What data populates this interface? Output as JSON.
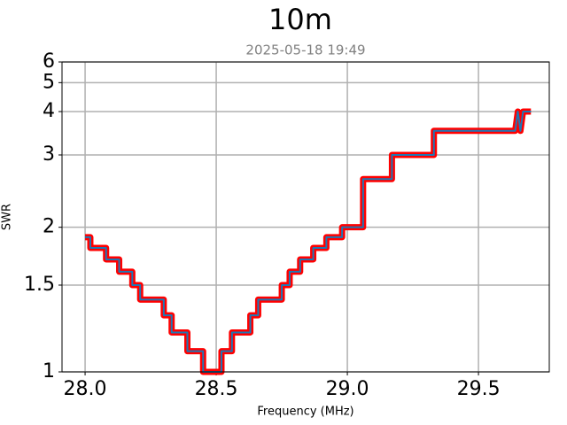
{
  "chart_data": {
    "type": "line",
    "title": "10m",
    "subtitle": "2025-05-18 19:49",
    "x_label": "Frequency (MHz)",
    "y_label": "SWR",
    "yscale": "reflection",
    "color": "#1f77b4",
    "edge_color": "#ff0000",
    "grid": true,
    "xlim": [
      27.912,
      29.77
    ],
    "ylim": [
      1,
      6
    ],
    "xticks": [
      {
        "value": 28,
        "label": "28.0"
      },
      {
        "value": 28.5,
        "label": "28.5"
      },
      {
        "value": 29,
        "label": "29.0"
      },
      {
        "value": 29.5,
        "label": "29.5"
      }
    ],
    "yticks": [
      1,
      1.5,
      2,
      3,
      4,
      5,
      6
    ],
    "x": [
      28.0,
      28.02,
      28.02,
      28.08,
      28.08,
      28.13,
      28.13,
      28.18,
      28.18,
      28.21,
      28.21,
      28.3,
      28.3,
      28.33,
      28.33,
      28.39,
      28.39,
      28.45,
      28.45,
      28.52,
      28.52,
      28.56,
      28.56,
      28.63,
      28.63,
      28.66,
      28.66,
      28.75,
      28.75,
      28.78,
      28.78,
      28.82,
      28.82,
      28.87,
      28.87,
      28.92,
      28.92,
      28.98,
      28.98,
      29.06,
      29.06,
      29.17,
      29.17,
      29.33,
      29.33,
      29.64,
      29.65,
      29.66,
      29.67,
      29.7
    ],
    "values": [
      1.9,
      1.9,
      1.8,
      1.8,
      1.7,
      1.7,
      1.6,
      1.6,
      1.5,
      1.5,
      1.4,
      1.4,
      1.3,
      1.3,
      1.2,
      1.2,
      1.1,
      1.1,
      1.0,
      1.0,
      1.1,
      1.1,
      1.2,
      1.2,
      1.3,
      1.3,
      1.4,
      1.4,
      1.5,
      1.5,
      1.6,
      1.6,
      1.7,
      1.7,
      1.8,
      1.8,
      1.9,
      1.9,
      2.0,
      2.0,
      2.6,
      2.6,
      3.0,
      3.0,
      3.5,
      3.5,
      4.0,
      3.5,
      4.0,
      4.0
    ]
  }
}
